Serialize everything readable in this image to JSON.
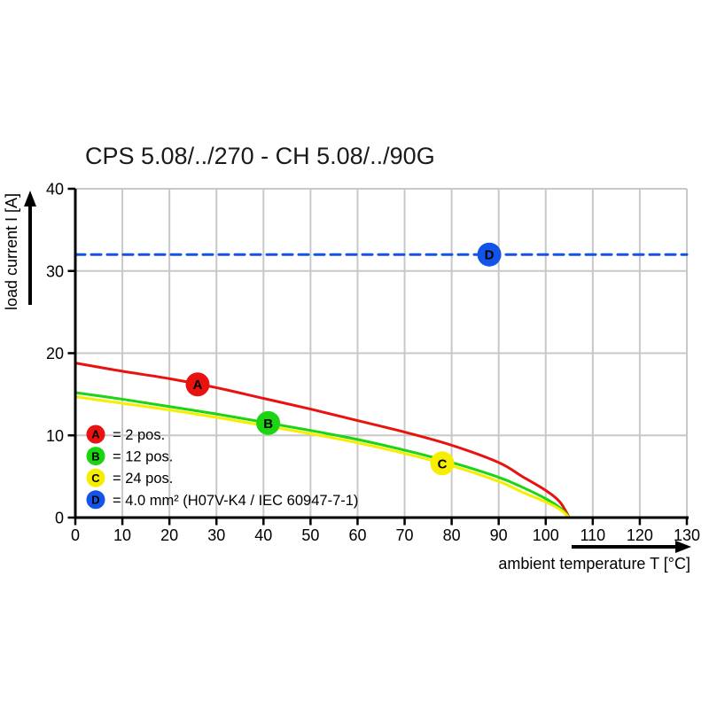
{
  "chart_data": {
    "type": "line",
    "title": "CPS 5.08/../270 - CH 5.08/../90G",
    "xlabel": "ambient temperature T [°C]",
    "ylabel": "load current I [A]",
    "xlim": [
      0,
      130
    ],
    "ylim": [
      0,
      40
    ],
    "x_ticks": [
      0,
      10,
      20,
      30,
      40,
      50,
      60,
      70,
      80,
      90,
      100,
      110,
      120,
      130
    ],
    "y_ticks": [
      0,
      10,
      20,
      30,
      40
    ],
    "grid": true,
    "grid_color": "#c8c8c8",
    "axis_color": "#000000",
    "legend_position": "inside-bottom-left",
    "series": [
      {
        "id": "A",
        "legend_label": "= 2 pos.",
        "color": "#e81310",
        "style": "solid",
        "points": [
          [
            0,
            18.8
          ],
          [
            10,
            17.8
          ],
          [
            20,
            16.9
          ],
          [
            30,
            15.8
          ],
          [
            40,
            14.5
          ],
          [
            50,
            13.2
          ],
          [
            60,
            11.8
          ],
          [
            70,
            10.4
          ],
          [
            80,
            8.8
          ],
          [
            90,
            6.7
          ],
          [
            95,
            5.0
          ],
          [
            100,
            3.3
          ],
          [
            103,
            1.9
          ],
          [
            105,
            0
          ]
        ]
      },
      {
        "id": "B",
        "legend_label": "= 12 pos.",
        "color": "#1bd512",
        "style": "solid",
        "points": [
          [
            0,
            15.2
          ],
          [
            10,
            14.4
          ],
          [
            20,
            13.5
          ],
          [
            30,
            12.6
          ],
          [
            40,
            11.6
          ],
          [
            50,
            10.6
          ],
          [
            60,
            9.5
          ],
          [
            70,
            8.2
          ],
          [
            80,
            6.7
          ],
          [
            90,
            4.9
          ],
          [
            95,
            3.7
          ],
          [
            100,
            2.3
          ],
          [
            103,
            1.2
          ],
          [
            105,
            0
          ]
        ]
      },
      {
        "id": "C",
        "legend_label": "= 24 pos.",
        "color": "#f6ee00",
        "style": "solid",
        "points": [
          [
            0,
            14.7
          ],
          [
            10,
            13.9
          ],
          [
            20,
            13.1
          ],
          [
            30,
            12.2
          ],
          [
            40,
            11.2
          ],
          [
            50,
            10.2
          ],
          [
            60,
            9.1
          ],
          [
            70,
            7.8
          ],
          [
            80,
            6.3
          ],
          [
            90,
            4.4
          ],
          [
            95,
            3.1
          ],
          [
            100,
            1.9
          ],
          [
            103,
            1.0
          ],
          [
            105,
            0
          ]
        ]
      },
      {
        "id": "D",
        "legend_label": "= 4.0 mm² (H07V-K4 / IEC 60947-7-1)",
        "color": "#1353e8",
        "style": "dashed",
        "points": [
          [
            0,
            32
          ],
          [
            130,
            32
          ]
        ]
      }
    ],
    "curve_markers": [
      {
        "letter": "A",
        "x": 26,
        "y": 16.2
      },
      {
        "letter": "B",
        "x": 41,
        "y": 11.5
      },
      {
        "letter": "C",
        "x": 78,
        "y": 6.6
      },
      {
        "letter": "D",
        "x": 88,
        "y": 32
      }
    ]
  }
}
